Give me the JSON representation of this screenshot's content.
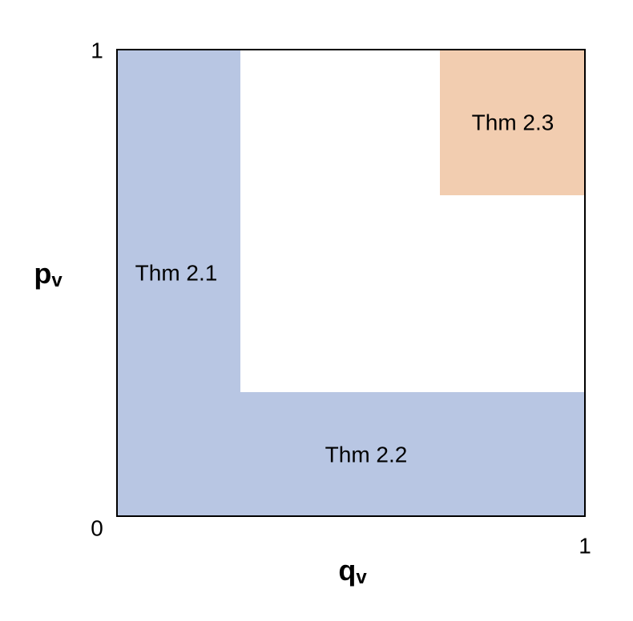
{
  "axes": {
    "x_label": {
      "main": "q",
      "sub": "v"
    },
    "y_label": {
      "main": "p",
      "sub": "v"
    },
    "y_top": "1",
    "origin": "0",
    "x_right": "1"
  },
  "regions": [
    {
      "label": "Thm 2.1"
    },
    {
      "label": "Thm 2.2"
    },
    {
      "label": "Thm 2.3"
    }
  ]
}
